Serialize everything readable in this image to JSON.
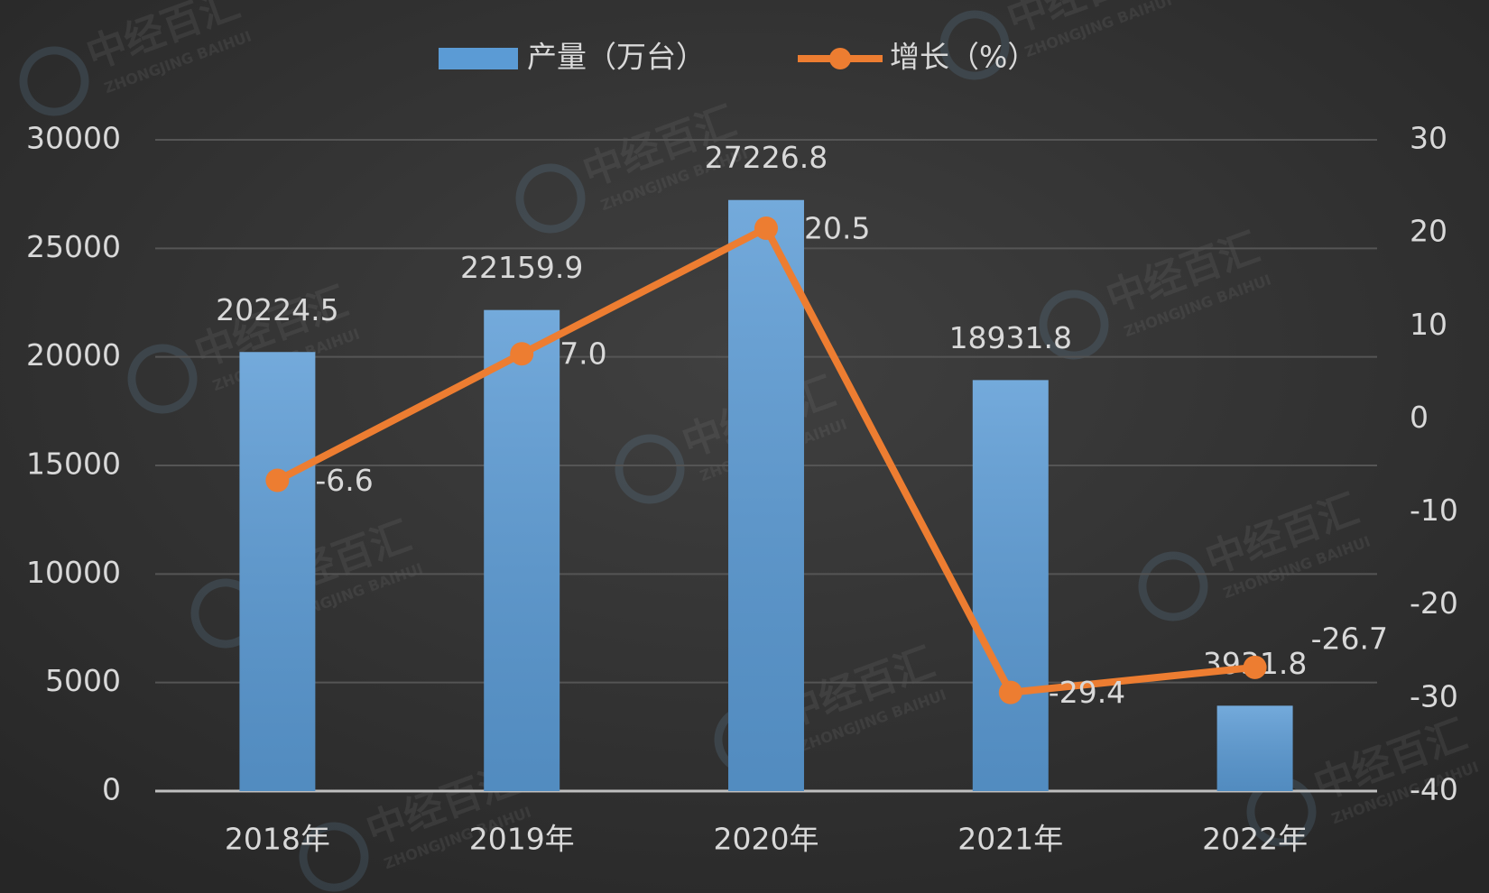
{
  "chart_data": {
    "type": "bar",
    "watermark": "中经百汇",
    "watermark_sub": "ZHONGJING BAIHUI",
    "categories": [
      "2018年",
      "2019年",
      "2020年",
      "2021年",
      "2022年"
    ],
    "series": [
      {
        "name": "产量（万台）",
        "type": "bar",
        "color": "#5b9bd5",
        "values": [
          20224.5,
          22159.9,
          27226.8,
          18931.8,
          3931.8
        ]
      },
      {
        "name": "增长（%）",
        "type": "line",
        "axis": "y2",
        "color": "#ed7d31",
        "values": [
          -6.6,
          7,
          20.5,
          -29.4,
          -26.7
        ],
        "value_labels": [
          "-6.6",
          "7.0",
          "20.5",
          "-29.4",
          "-26.7"
        ]
      }
    ],
    "ylim": [
      0,
      30000
    ],
    "yticks": [
      0,
      5000,
      10000,
      15000,
      20000,
      25000,
      30000
    ],
    "y2lim": [
      -40,
      30
    ],
    "y2ticks": [
      -40,
      -30,
      -20,
      -10,
      0,
      10,
      20,
      30
    ],
    "grid": true,
    "legend": "top"
  }
}
